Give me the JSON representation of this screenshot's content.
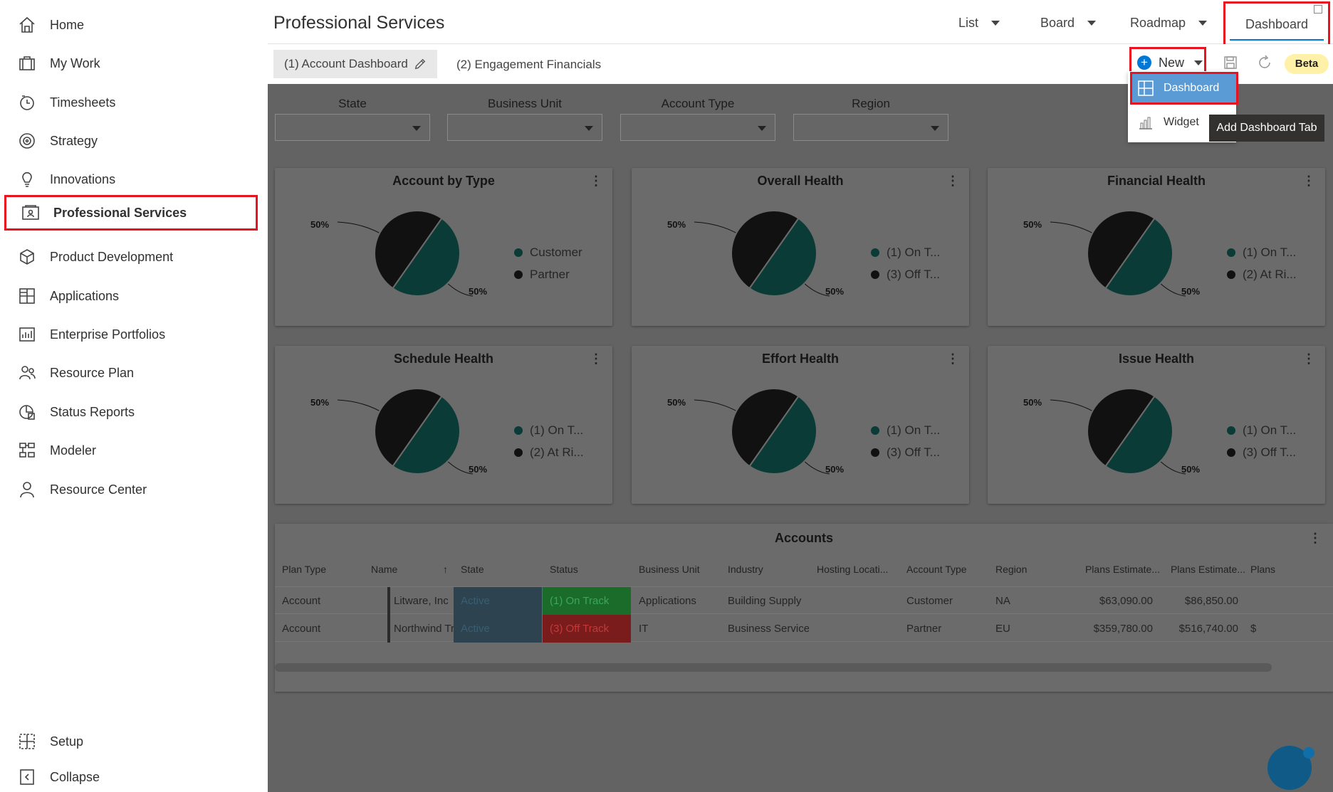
{
  "sidebar": {
    "items": [
      {
        "label": "Home",
        "icon": "home-icon"
      },
      {
        "label": "My Work",
        "icon": "briefcase-icon"
      },
      {
        "label": "Timesheets",
        "icon": "clock-icon"
      },
      {
        "label": "Strategy",
        "icon": "target-icon"
      },
      {
        "label": "Innovations",
        "icon": "lightbulb-icon"
      },
      {
        "label": "Professional Services",
        "icon": "id-card-icon",
        "active": true
      },
      {
        "label": "Product Development",
        "icon": "cube-icon"
      },
      {
        "label": "Applications",
        "icon": "grid-icon"
      },
      {
        "label": "Enterprise Portfolios",
        "icon": "bar-chart-icon"
      },
      {
        "label": "Resource Plan",
        "icon": "people-icon"
      },
      {
        "label": "Status Reports",
        "icon": "report-icon"
      },
      {
        "label": "Modeler",
        "icon": "modeler-icon"
      },
      {
        "label": "Resource Center",
        "icon": "person-icon"
      }
    ],
    "bottom": [
      {
        "label": "Setup",
        "icon": "setup-icon"
      },
      {
        "label": "Collapse",
        "icon": "collapse-icon"
      }
    ]
  },
  "header": {
    "title": "Professional Services",
    "views": [
      "List",
      "Board",
      "Roadmap"
    ],
    "active_view": "Dashboard"
  },
  "subbar": {
    "tabs": [
      "(1) Account Dashboard",
      "(2) Engagement Financials"
    ],
    "new_label": "New",
    "beta_label": "Beta"
  },
  "dropdown": {
    "items": [
      "Dashboard",
      "Widget"
    ],
    "tooltip": "Add Dashboard Tab"
  },
  "filters": [
    "State",
    "Business Unit",
    "Account Type",
    "Region"
  ],
  "colors": {
    "accent": "#0078d4",
    "highlight": "#e8131f",
    "pie_dark": "#111111",
    "pie_teal": "#0b3b36",
    "overlay": "#636363"
  },
  "widgets": [
    {
      "title": "Account by Type",
      "legend": [
        "Customer",
        "Partner"
      ],
      "pct_top": "50%",
      "pct_bottom": "50%"
    },
    {
      "title": "Overall Health",
      "legend": [
        "(1) On T...",
        "(3) Off T..."
      ],
      "pct_top": "50%",
      "pct_bottom": "50%"
    },
    {
      "title": "Financial Health",
      "legend": [
        "(1) On T...",
        "(2) At Ri..."
      ],
      "pct_top": "50%",
      "pct_bottom": "50%"
    },
    {
      "title": "Schedule Health",
      "legend": [
        "(1) On T...",
        "(2) At Ri..."
      ],
      "pct_top": "50%",
      "pct_bottom": "50%"
    },
    {
      "title": "Effort Health",
      "legend": [
        "(1) On T...",
        "(3) Off T..."
      ],
      "pct_top": "50%",
      "pct_bottom": "50%"
    },
    {
      "title": "Issue Health",
      "legend": [
        "(1) On T...",
        "(3) Off T..."
      ],
      "pct_top": "50%",
      "pct_bottom": "50%"
    }
  ],
  "accounts": {
    "title": "Accounts",
    "columns": [
      "Plan Type",
      "Name",
      "State",
      "Status",
      "Business Unit",
      "Industry",
      "Hosting Locati...",
      "Account Type",
      "Region",
      "Plans Estimate...",
      "Plans Estimate...",
      "Plans"
    ],
    "rows": [
      [
        "Account",
        "Litware, Inc",
        "Active",
        "(1) On Track",
        "Applications",
        "Building Supply",
        "",
        "Customer",
        "NA",
        "$63,090.00",
        "$86,850.00",
        ""
      ],
      [
        "Account",
        "Northwind Traders",
        "Active",
        "(3) Off Track",
        "IT",
        "Business Service",
        "",
        "Partner",
        "EU",
        "$359,780.00",
        "$516,740.00",
        "$"
      ]
    ],
    "status_colors": [
      "#1b6b2a",
      "#7a1c1c"
    ]
  }
}
